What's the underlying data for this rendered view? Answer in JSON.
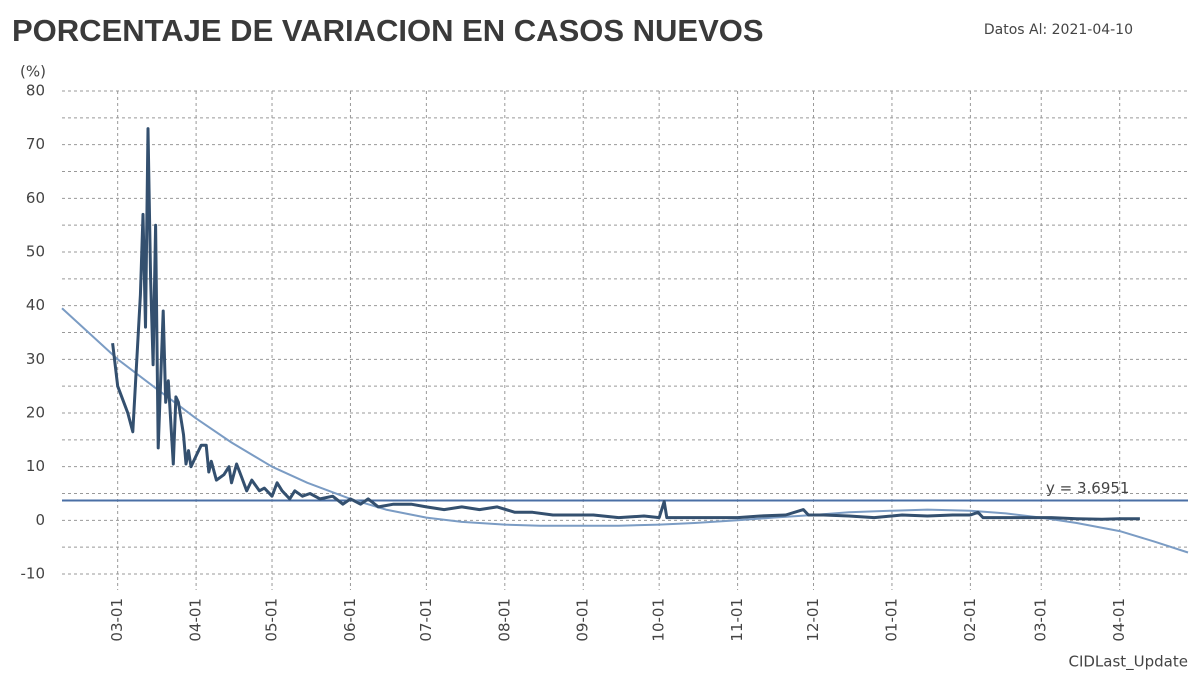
{
  "chart_data": {
    "type": "line",
    "title": "PORCENTAJE DE VARIACION EN CASOS NUEVOS",
    "subtitle": "Datos Al: 2021-04-10",
    "y_label": "(%)",
    "x_label": "CIDLast_Update",
    "xlim": [
      "02-08",
      "04-28"
    ],
    "xticks": [
      "03-01",
      "04-01",
      "05-01",
      "06-01",
      "07-01",
      "08-01",
      "09-01",
      "10-01",
      "11-01",
      "12-01",
      "01-01",
      "02-01",
      "03-01",
      "04-01"
    ],
    "ylim": [
      -10,
      80
    ],
    "yticks": [
      -10,
      0,
      10,
      20,
      30,
      40,
      50,
      60,
      70,
      80
    ],
    "yminorticks": [
      -5,
      5,
      15,
      25,
      35,
      45,
      55,
      65,
      75
    ],
    "grid": true,
    "hline": {
      "value": 3.6951,
      "label": "y = 3.6951",
      "color": "#4a6fa5"
    },
    "series": [
      {
        "color": "#34506f",
        "x": [
          "02-28",
          "03-01",
          "03-05",
          "03-07",
          "03-10",
          "03-11",
          "03-12",
          "03-13",
          "03-14",
          "03-15",
          "03-16",
          "03-17",
          "03-19",
          "03-20",
          "03-21",
          "03-23",
          "03-24",
          "03-25",
          "03-27",
          "03-28",
          "03-29",
          "03-30",
          "04-01",
          "04-03",
          "04-05",
          "04-06",
          "04-07",
          "04-09",
          "04-12",
          "04-14",
          "04-15",
          "04-17",
          "04-19",
          "04-21",
          "04-23",
          "04-26",
          "04-28",
          "05-01",
          "05-03",
          "05-05",
          "05-08",
          "05-10",
          "05-13",
          "05-16",
          "05-20",
          "05-25",
          "05-29",
          "06-01",
          "06-05",
          "06-08",
          "06-12",
          "06-18",
          "06-25",
          "07-01",
          "07-08",
          "07-15",
          "07-22",
          "07-29",
          "08-05",
          "08-12",
          "08-20",
          "08-28",
          "09-05",
          "09-15",
          "09-25",
          "10-01",
          "10-03",
          "10-04",
          "10-10",
          "10-20",
          "11-01",
          "11-10",
          "11-20",
          "11-27",
          "11-29",
          "12-05",
          "12-15",
          "12-25",
          "01-05",
          "01-15",
          "01-25",
          "02-01",
          "02-04",
          "02-06",
          "02-15",
          "02-25",
          "03-05",
          "03-15",
          "03-25",
          "04-01",
          "04-09"
        ],
        "values": [
          33,
          25,
          20,
          16.5,
          42,
          57,
          36,
          73,
          45,
          29,
          55,
          13.5,
          39,
          22,
          26,
          10.5,
          23,
          22,
          16,
          10.5,
          13,
          10,
          12,
          14,
          14,
          9,
          11,
          7.5,
          8.5,
          10,
          7,
          10.5,
          8,
          5.5,
          7.5,
          5.5,
          6,
          4.5,
          7,
          5.5,
          4,
          5.5,
          4.5,
          5,
          4,
          4.5,
          3,
          4,
          3,
          4,
          2.5,
          3,
          3,
          2.5,
          2,
          2.5,
          2,
          2.5,
          1.5,
          1.5,
          1,
          1,
          1,
          0.5,
          0.8,
          0.5,
          3.5,
          0.5,
          0.5,
          0.5,
          0.5,
          0.8,
          1,
          2,
          1,
          1,
          0.8,
          0.5,
          1,
          0.8,
          1,
          1,
          1.5,
          0.5,
          0.5,
          0.5,
          0.5,
          0.3,
          0.2,
          0.3,
          0.3
        ]
      },
      {
        "color": "#7b9cc4",
        "x": [
          "02-08",
          "03-01",
          "03-15",
          "04-01",
          "04-15",
          "05-01",
          "05-15",
          "06-01",
          "06-15",
          "07-01",
          "07-15",
          "08-01",
          "08-15",
          "09-01",
          "09-15",
          "10-01",
          "10-15",
          "11-01",
          "11-15",
          "12-01",
          "12-15",
          "01-01",
          "01-15",
          "02-01",
          "02-15",
          "03-01",
          "03-15",
          "04-01",
          "04-15",
          "04-28"
        ],
        "values": [
          39.5,
          30,
          25,
          19,
          14.5,
          10,
          7,
          4,
          2,
          0.5,
          -0.3,
          -0.8,
          -1,
          -1,
          -1,
          -0.8,
          -0.5,
          0,
          0.5,
          1,
          1.5,
          1.8,
          2,
          1.8,
          1.3,
          0.5,
          -0.5,
          -2,
          -4,
          -6
        ]
      }
    ]
  }
}
